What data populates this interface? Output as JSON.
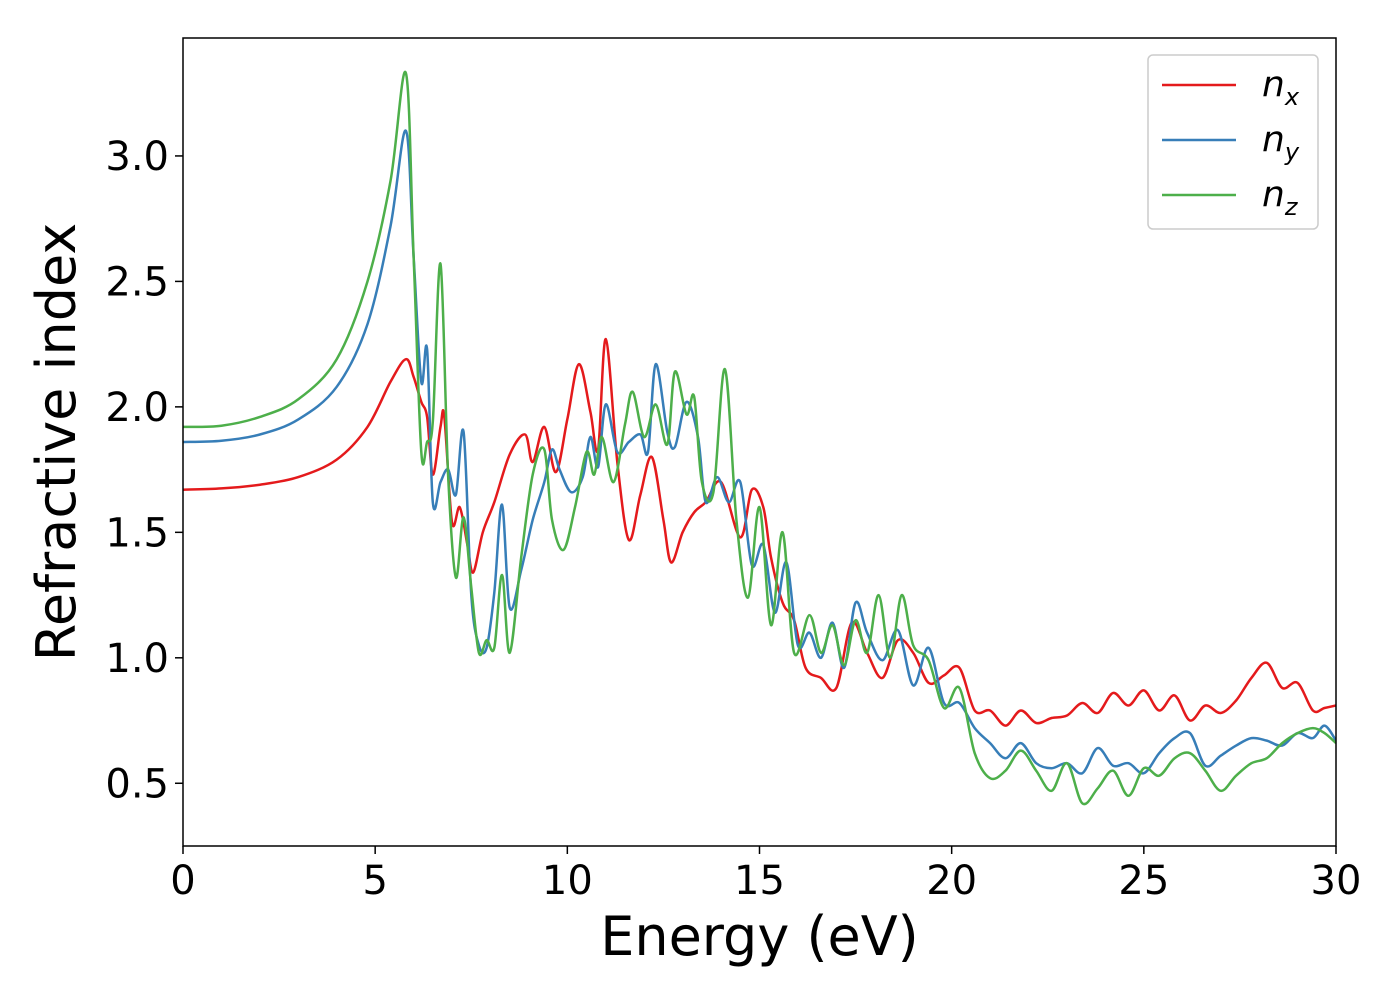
{
  "chart_data": {
    "type": "line",
    "xlabel": "Energy (eV)",
    "ylabel": "Refractive index",
    "xlim": [
      0,
      30
    ],
    "ylim": [
      0.25,
      3.47
    ],
    "xticks": [
      0,
      5,
      10,
      15,
      20,
      25,
      30
    ],
    "xtick_labels": [
      "0",
      "5",
      "10",
      "15",
      "20",
      "25",
      "30"
    ],
    "yticks": [
      0.5,
      1.0,
      1.5,
      2.0,
      2.5,
      3.0
    ],
    "ytick_labels": [
      "0.5",
      "1.0",
      "1.5",
      "2.0",
      "2.5",
      "3.0"
    ],
    "grid": false,
    "legend": {
      "placement": "top-right"
    },
    "series": [
      {
        "name": "n",
        "subscript": "x",
        "color": "#e41a1c",
        "points": [
          [
            0,
            1.67
          ],
          [
            1,
            1.675
          ],
          [
            2,
            1.69
          ],
          [
            3,
            1.72
          ],
          [
            4,
            1.79
          ],
          [
            4.8,
            1.92
          ],
          [
            5.4,
            2.1
          ],
          [
            5.8,
            2.19
          ],
          [
            6.0,
            2.12
          ],
          [
            6.2,
            2.02
          ],
          [
            6.35,
            1.96
          ],
          [
            6.5,
            1.73
          ],
          [
            6.7,
            1.92
          ],
          [
            6.8,
            1.96
          ],
          [
            7.0,
            1.54
          ],
          [
            7.2,
            1.6
          ],
          [
            7.4,
            1.45
          ],
          [
            7.55,
            1.34
          ],
          [
            7.8,
            1.5
          ],
          [
            8.1,
            1.62
          ],
          [
            8.5,
            1.81
          ],
          [
            8.9,
            1.89
          ],
          [
            9.1,
            1.78
          ],
          [
            9.4,
            1.92
          ],
          [
            9.7,
            1.74
          ],
          [
            10.0,
            1.95
          ],
          [
            10.3,
            2.17
          ],
          [
            10.6,
            1.98
          ],
          [
            10.8,
            1.83
          ],
          [
            11.0,
            2.27
          ],
          [
            11.3,
            1.78
          ],
          [
            11.6,
            1.47
          ],
          [
            11.9,
            1.65
          ],
          [
            12.2,
            1.8
          ],
          [
            12.5,
            1.55
          ],
          [
            12.7,
            1.38
          ],
          [
            13.0,
            1.5
          ],
          [
            13.3,
            1.58
          ],
          [
            13.6,
            1.62
          ],
          [
            14.0,
            1.7
          ],
          [
            14.5,
            1.48
          ],
          [
            14.8,
            1.67
          ],
          [
            15.1,
            1.6
          ],
          [
            15.3,
            1.4
          ],
          [
            15.6,
            1.22
          ],
          [
            15.9,
            1.15
          ],
          [
            16.2,
            0.96
          ],
          [
            16.6,
            0.92
          ],
          [
            17.0,
            0.88
          ],
          [
            17.4,
            1.14
          ],
          [
            17.8,
            1.02
          ],
          [
            18.2,
            0.92
          ],
          [
            18.6,
            1.07
          ],
          [
            19.0,
            1.02
          ],
          [
            19.4,
            0.9
          ],
          [
            19.8,
            0.93
          ],
          [
            20.2,
            0.96
          ],
          [
            20.6,
            0.79
          ],
          [
            21.0,
            0.79
          ],
          [
            21.4,
            0.73
          ],
          [
            21.8,
            0.79
          ],
          [
            22.2,
            0.74
          ],
          [
            22.6,
            0.76
          ],
          [
            23.0,
            0.77
          ],
          [
            23.4,
            0.82
          ],
          [
            23.8,
            0.78
          ],
          [
            24.2,
            0.86
          ],
          [
            24.6,
            0.81
          ],
          [
            25.0,
            0.87
          ],
          [
            25.4,
            0.79
          ],
          [
            25.8,
            0.85
          ],
          [
            26.2,
            0.75
          ],
          [
            26.6,
            0.81
          ],
          [
            27.0,
            0.78
          ],
          [
            27.4,
            0.83
          ],
          [
            27.8,
            0.92
          ],
          [
            28.2,
            0.98
          ],
          [
            28.6,
            0.88
          ],
          [
            29.0,
            0.9
          ],
          [
            29.4,
            0.79
          ],
          [
            29.7,
            0.8
          ],
          [
            30.0,
            0.81
          ]
        ]
      },
      {
        "name": "n",
        "subscript": "y",
        "color": "#377eb8",
        "points": [
          [
            0,
            1.86
          ],
          [
            1,
            1.865
          ],
          [
            2,
            1.89
          ],
          [
            3,
            1.95
          ],
          [
            4,
            2.08
          ],
          [
            4.8,
            2.33
          ],
          [
            5.4,
            2.72
          ],
          [
            5.8,
            3.1
          ],
          [
            6.0,
            2.6
          ],
          [
            6.2,
            2.1
          ],
          [
            6.35,
            2.23
          ],
          [
            6.5,
            1.62
          ],
          [
            6.7,
            1.7
          ],
          [
            6.9,
            1.75
          ],
          [
            7.1,
            1.65
          ],
          [
            7.3,
            1.9
          ],
          [
            7.5,
            1.25
          ],
          [
            7.7,
            1.05
          ],
          [
            7.9,
            1.04
          ],
          [
            8.1,
            1.26
          ],
          [
            8.3,
            1.61
          ],
          [
            8.5,
            1.2
          ],
          [
            8.8,
            1.35
          ],
          [
            9.1,
            1.55
          ],
          [
            9.4,
            1.7
          ],
          [
            9.6,
            1.83
          ],
          [
            9.8,
            1.75
          ],
          [
            10.1,
            1.66
          ],
          [
            10.4,
            1.72
          ],
          [
            10.6,
            1.88
          ],
          [
            10.8,
            1.76
          ],
          [
            11.0,
            2.01
          ],
          [
            11.3,
            1.82
          ],
          [
            11.6,
            1.86
          ],
          [
            11.9,
            1.89
          ],
          [
            12.1,
            1.82
          ],
          [
            12.3,
            2.17
          ],
          [
            12.6,
            1.9
          ],
          [
            12.8,
            1.84
          ],
          [
            13.1,
            2.02
          ],
          [
            13.4,
            1.88
          ],
          [
            13.6,
            1.62
          ],
          [
            13.9,
            1.72
          ],
          [
            14.2,
            1.62
          ],
          [
            14.5,
            1.7
          ],
          [
            14.8,
            1.37
          ],
          [
            15.1,
            1.45
          ],
          [
            15.4,
            1.18
          ],
          [
            15.7,
            1.38
          ],
          [
            16.0,
            1.05
          ],
          [
            16.3,
            1.1
          ],
          [
            16.6,
            1.0
          ],
          [
            16.9,
            1.14
          ],
          [
            17.2,
            0.96
          ],
          [
            17.5,
            1.22
          ],
          [
            17.8,
            1.1
          ],
          [
            18.2,
            0.99
          ],
          [
            18.6,
            1.11
          ],
          [
            19.0,
            0.89
          ],
          [
            19.4,
            1.04
          ],
          [
            19.8,
            0.82
          ],
          [
            20.2,
            0.82
          ],
          [
            20.6,
            0.72
          ],
          [
            21.0,
            0.66
          ],
          [
            21.4,
            0.6
          ],
          [
            21.8,
            0.66
          ],
          [
            22.2,
            0.58
          ],
          [
            22.6,
            0.56
          ],
          [
            23.0,
            0.58
          ],
          [
            23.4,
            0.54
          ],
          [
            23.8,
            0.64
          ],
          [
            24.2,
            0.57
          ],
          [
            24.6,
            0.58
          ],
          [
            25.0,
            0.54
          ],
          [
            25.4,
            0.62
          ],
          [
            25.8,
            0.68
          ],
          [
            26.2,
            0.7
          ],
          [
            26.6,
            0.57
          ],
          [
            27.0,
            0.61
          ],
          [
            27.4,
            0.65
          ],
          [
            27.8,
            0.68
          ],
          [
            28.2,
            0.67
          ],
          [
            28.6,
            0.65
          ],
          [
            29.0,
            0.7
          ],
          [
            29.4,
            0.68
          ],
          [
            29.7,
            0.73
          ],
          [
            30.0,
            0.67
          ]
        ]
      },
      {
        "name": "n",
        "subscript": "z",
        "color": "#4daf4a",
        "points": [
          [
            0,
            1.92
          ],
          [
            1,
            1.925
          ],
          [
            2,
            1.96
          ],
          [
            3,
            2.03
          ],
          [
            4,
            2.19
          ],
          [
            4.8,
            2.5
          ],
          [
            5.4,
            2.9
          ],
          [
            5.8,
            3.33
          ],
          [
            6.0,
            2.6
          ],
          [
            6.2,
            1.82
          ],
          [
            6.35,
            1.86
          ],
          [
            6.5,
            1.94
          ],
          [
            6.7,
            2.57
          ],
          [
            6.9,
            1.72
          ],
          [
            7.1,
            1.32
          ],
          [
            7.3,
            1.56
          ],
          [
            7.5,
            1.28
          ],
          [
            7.7,
            1.02
          ],
          [
            7.9,
            1.07
          ],
          [
            8.1,
            1.04
          ],
          [
            8.3,
            1.33
          ],
          [
            8.5,
            1.02
          ],
          [
            8.8,
            1.4
          ],
          [
            9.1,
            1.73
          ],
          [
            9.4,
            1.83
          ],
          [
            9.6,
            1.55
          ],
          [
            9.9,
            1.43
          ],
          [
            10.2,
            1.6
          ],
          [
            10.5,
            1.82
          ],
          [
            10.7,
            1.73
          ],
          [
            10.9,
            1.88
          ],
          [
            11.2,
            1.7
          ],
          [
            11.5,
            1.93
          ],
          [
            11.7,
            2.06
          ],
          [
            12.0,
            1.88
          ],
          [
            12.3,
            2.01
          ],
          [
            12.6,
            1.85
          ],
          [
            12.8,
            2.14
          ],
          [
            13.1,
            1.97
          ],
          [
            13.3,
            2.04
          ],
          [
            13.5,
            1.7
          ],
          [
            13.8,
            1.66
          ],
          [
            14.1,
            2.15
          ],
          [
            14.4,
            1.55
          ],
          [
            14.7,
            1.24
          ],
          [
            15.0,
            1.6
          ],
          [
            15.3,
            1.13
          ],
          [
            15.6,
            1.5
          ],
          [
            15.9,
            1.02
          ],
          [
            16.3,
            1.17
          ],
          [
            16.6,
            1.02
          ],
          [
            16.9,
            1.13
          ],
          [
            17.2,
            0.97
          ],
          [
            17.5,
            1.15
          ],
          [
            17.8,
            1.02
          ],
          [
            18.1,
            1.25
          ],
          [
            18.4,
            1.0
          ],
          [
            18.7,
            1.25
          ],
          [
            19.0,
            1.05
          ],
          [
            19.4,
            0.99
          ],
          [
            19.8,
            0.8
          ],
          [
            20.2,
            0.88
          ],
          [
            20.6,
            0.62
          ],
          [
            21.0,
            0.52
          ],
          [
            21.4,
            0.55
          ],
          [
            21.8,
            0.63
          ],
          [
            22.2,
            0.55
          ],
          [
            22.6,
            0.47
          ],
          [
            23.0,
            0.58
          ],
          [
            23.4,
            0.42
          ],
          [
            23.8,
            0.48
          ],
          [
            24.2,
            0.55
          ],
          [
            24.6,
            0.45
          ],
          [
            25.0,
            0.56
          ],
          [
            25.4,
            0.53
          ],
          [
            25.8,
            0.6
          ],
          [
            26.2,
            0.62
          ],
          [
            26.6,
            0.55
          ],
          [
            27.0,
            0.47
          ],
          [
            27.4,
            0.53
          ],
          [
            27.8,
            0.58
          ],
          [
            28.2,
            0.6
          ],
          [
            28.6,
            0.66
          ],
          [
            29.0,
            0.7
          ],
          [
            29.4,
            0.72
          ],
          [
            29.7,
            0.7
          ],
          [
            30.0,
            0.66
          ]
        ]
      }
    ]
  }
}
